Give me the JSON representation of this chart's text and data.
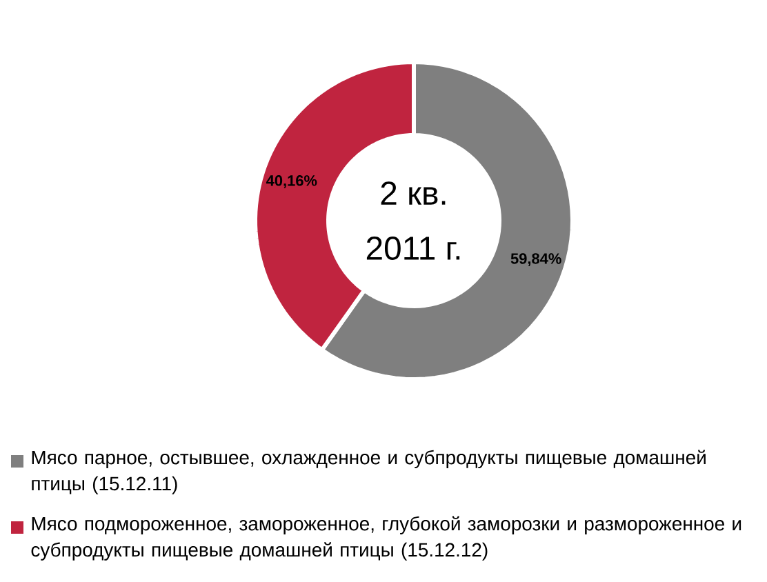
{
  "chart_data": {
    "type": "donut",
    "categories": [
      "Мясо парное, остывшее, охлажденное и субпродукты пищевые домашней птицы (15.12.11)",
      "Мясо подмороженное, замороженное, глубокой заморозки и размороженное и субпродукты пищевые домашней птицы (15.12.12)"
    ],
    "values": [
      59.84,
      40.16
    ],
    "colors": [
      "#7f7f7f",
      "#c0243f"
    ],
    "value_labels": [
      "59,84%",
      "40,16%"
    ],
    "annotations": [
      "2 кв.",
      "2011 г."
    ],
    "legend": "bottom"
  }
}
